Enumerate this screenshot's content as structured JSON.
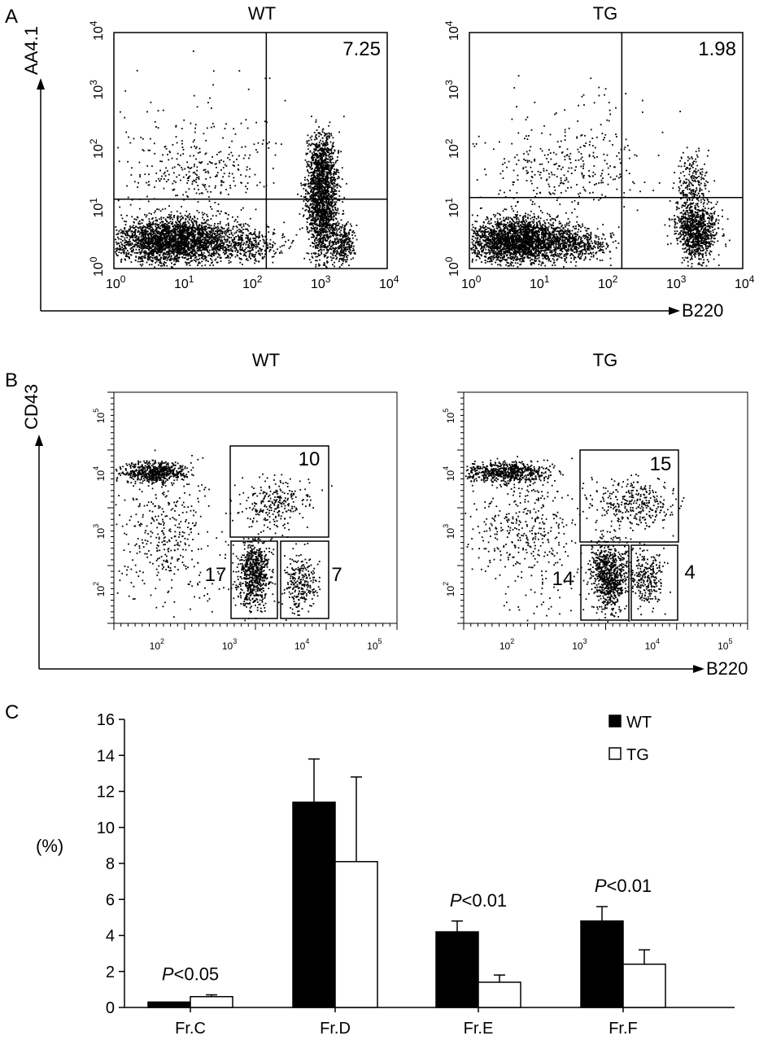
{
  "panel_a": {
    "letter": "A",
    "x_axis_label": "B220",
    "y_axis_label": "AA4.1",
    "tick_base": "10",
    "tick_exponents": [
      "0",
      "1",
      "2",
      "3",
      "4"
    ]
  },
  "panel_b": {
    "letter": "B",
    "x_axis_label": "B220",
    "y_axis_label": "CD43",
    "tick_base": "10",
    "tick_exponents": [
      "2",
      "3",
      "4",
      "5"
    ]
  },
  "panel_c": {
    "letter": "C",
    "y_axis_label": "(%)"
  },
  "chart_data": [
    {
      "type": "scatter",
      "title": "WT",
      "xlabel": "B220",
      "ylabel": "AA4.1",
      "scale": "log",
      "xlim": [
        1,
        10000
      ],
      "ylim": [
        1,
        10000
      ],
      "gates": {
        "x": 170,
        "y": 15
      },
      "annotations": [
        {
          "text": "7.25",
          "region": "upper-right"
        }
      ]
    },
    {
      "type": "scatter",
      "title": "TG",
      "xlabel": "B220",
      "ylabel": "AA4.1",
      "scale": "log",
      "xlim": [
        1,
        10000
      ],
      "ylim": [
        1,
        10000
      ],
      "gates": {
        "x": 170,
        "y": 16
      },
      "annotations": [
        {
          "text": "1.98",
          "region": "upper-right"
        }
      ]
    },
    {
      "type": "scatter",
      "title": "WT",
      "xlabel": "B220",
      "ylabel": "CD43",
      "scale": "log",
      "xlim": [
        25,
        200000
      ],
      "ylim": [
        25,
        250000
      ],
      "gate_values": [
        "10",
        "17",
        "7"
      ]
    },
    {
      "type": "scatter",
      "title": "TG",
      "xlabel": "B220",
      "ylabel": "CD43",
      "scale": "log",
      "xlim": [
        25,
        200000
      ],
      "ylim": [
        25,
        250000
      ],
      "gate_values": [
        "15",
        "14",
        "4"
      ]
    },
    {
      "type": "bar",
      "categories": [
        "Fr.C",
        "Fr.D",
        "Fr.E",
        "Fr.F"
      ],
      "series": [
        {
          "name": "WT",
          "values": [
            0.3,
            11.4,
            4.2,
            4.8
          ],
          "errors": [
            0.0,
            2.4,
            0.6,
            0.8
          ],
          "color": "#000000"
        },
        {
          "name": "TG",
          "values": [
            0.6,
            8.1,
            1.4,
            2.4
          ],
          "errors": [
            0.1,
            4.7,
            0.4,
            0.8
          ],
          "color": "#ffffff"
        }
      ],
      "ylabel": "(%)",
      "ylim": [
        0,
        16
      ],
      "yticks": [
        "0",
        "2",
        "4",
        "6",
        "8",
        "10",
        "12",
        "14",
        "16"
      ],
      "legend": "top-right",
      "annotations": [
        {
          "category": "Fr.C",
          "p_symbol": "P",
          "text": "<0.05"
        },
        {
          "category": "Fr.E",
          "p_symbol": "P",
          "text": "<0.01"
        },
        {
          "category": "Fr.F",
          "p_symbol": "P",
          "text": "<0.01"
        }
      ]
    }
  ]
}
